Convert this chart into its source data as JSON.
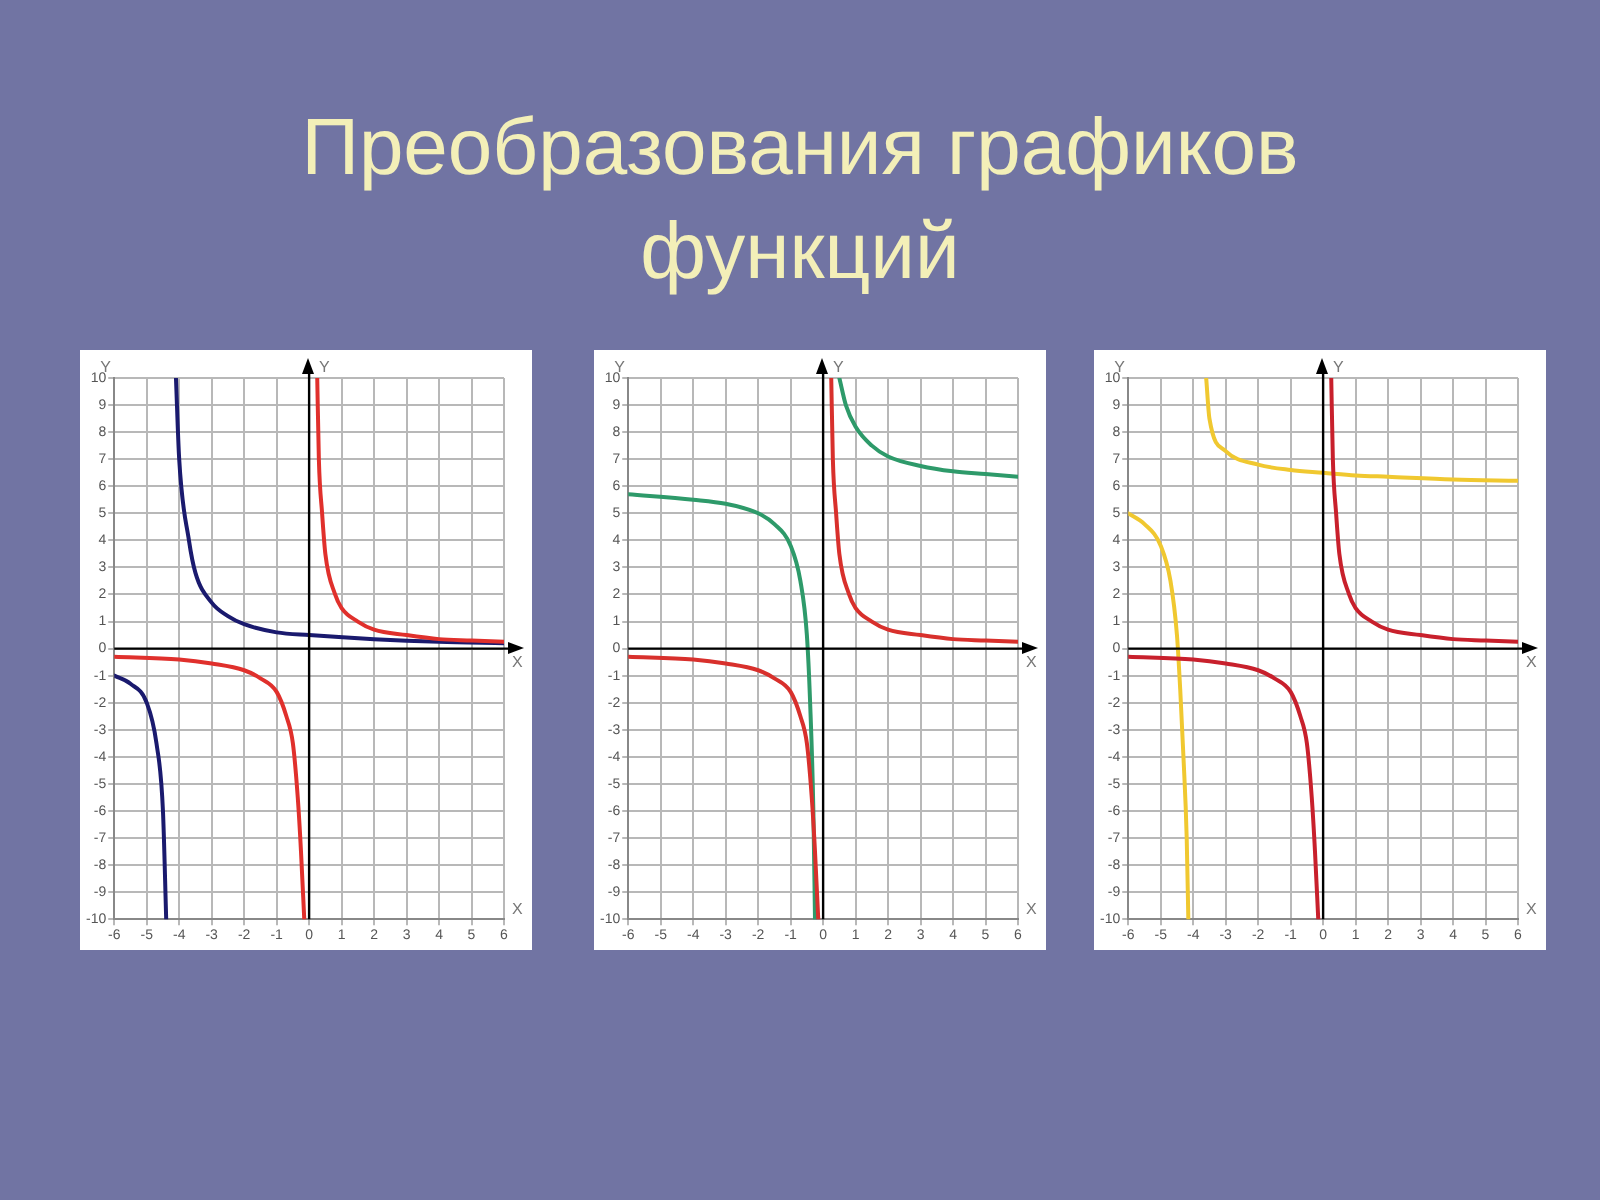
{
  "chart_data": [
    {
      "type": "line",
      "title": "Преобразования графиков функций",
      "xlabel": "X",
      "ylabel": "Y",
      "xlim": [
        -6,
        6
      ],
      "ylim": [
        -10,
        10
      ],
      "xticks": [
        -6,
        -5,
        -4,
        -3,
        -2,
        -1,
        0,
        1,
        2,
        3,
        4,
        5,
        6
      ],
      "yticks": [
        -10,
        -9,
        -8,
        -7,
        -6,
        -5,
        -4,
        -3,
        -2,
        -1,
        0,
        1,
        2,
        3,
        4,
        5,
        6,
        7,
        8,
        9,
        10
      ],
      "grid": true,
      "series": [
        {
          "color": "#e0302c",
          "x": [
            -6,
            -4,
            -3,
            -2,
            -1.5,
            -1,
            -0.7,
            -0.5,
            -0.35,
            -0.25,
            -0.15,
            0,
            0.25,
            0.3,
            0.4,
            0.5,
            0.8,
            1,
            1.5,
            2,
            3,
            4,
            5,
            6
          ],
          "values": [
            -0.3,
            -0.4,
            -0.55,
            -0.8,
            -1.1,
            -1.6,
            -2.5,
            -3.5,
            -5.5,
            -7.5,
            -10,
            null,
            10,
            7,
            5,
            3.5,
            2,
            1.5,
            1,
            0.7,
            0.5,
            0.35,
            0.3,
            0.25
          ]
        },
        {
          "color": "#1a1a6e",
          "x": [
            -6,
            -5.5,
            -5,
            -4.7,
            -4.5,
            -4.4,
            -4.2,
            -4.1,
            -4,
            -3.7,
            -3.5,
            -3,
            -2.5,
            -2,
            -1,
            0,
            2,
            4,
            6
          ],
          "values": [
            -1,
            -1.3,
            -2,
            -3.5,
            -6,
            -10,
            null,
            10,
            7,
            4,
            2.8,
            1.7,
            1.2,
            0.9,
            0.6,
            0.5,
            0.35,
            0.25,
            0.2
          ]
        }
      ]
    },
    {
      "type": "line",
      "xlabel": "X",
      "ylabel": "Y",
      "xlim": [
        -6,
        6
      ],
      "ylim": [
        -10,
        10
      ],
      "xticks": [
        -6,
        -5,
        -4,
        -3,
        -2,
        -1,
        0,
        1,
        2,
        3,
        4,
        5,
        6
      ],
      "yticks": [
        -10,
        -9,
        -8,
        -7,
        -6,
        -5,
        -4,
        -3,
        -2,
        -1,
        0,
        1,
        2,
        3,
        4,
        5,
        6,
        7,
        8,
        9,
        10
      ],
      "grid": true,
      "series": [
        {
          "color": "#d8302c",
          "x": [
            -6,
            -4,
            -3,
            -2,
            -1.5,
            -1,
            -0.7,
            -0.5,
            -0.35,
            -0.25,
            -0.15,
            0,
            0.25,
            0.3,
            0.4,
            0.5,
            0.8,
            1,
            1.5,
            2,
            3,
            4,
            5,
            6
          ],
          "values": [
            -0.3,
            -0.4,
            -0.55,
            -0.8,
            -1.1,
            -1.6,
            -2.5,
            -3.5,
            -5.5,
            -7.5,
            -10,
            null,
            10,
            7,
            5,
            3.5,
            2,
            1.5,
            1,
            0.7,
            0.5,
            0.35,
            0.3,
            0.25
          ]
        },
        {
          "color": "#2e9a6a",
          "x": [
            -6,
            -4,
            -3,
            -2,
            -1.5,
            -1,
            -0.7,
            -0.5,
            -0.4,
            -0.3,
            -0.25,
            0,
            0.5,
            0.7,
            1,
            1.5,
            2,
            3,
            4,
            5,
            6
          ],
          "values": [
            5.7,
            5.5,
            5.35,
            5,
            4.6,
            3.8,
            2.5,
            0.5,
            -2,
            -6,
            -10,
            null,
            10,
            9,
            8.2,
            7.5,
            7.1,
            6.75,
            6.55,
            6.45,
            6.35
          ]
        }
      ]
    },
    {
      "type": "line",
      "xlabel": "X",
      "ylabel": "Y",
      "xlim": [
        -6,
        6
      ],
      "ylim": [
        -10,
        10
      ],
      "xticks": [
        -6,
        -5,
        -4,
        -3,
        -2,
        -1,
        0,
        1,
        2,
        3,
        4,
        5,
        6
      ],
      "yticks": [
        -10,
        -9,
        -8,
        -7,
        -6,
        -5,
        -4,
        -3,
        -2,
        -1,
        0,
        1,
        2,
        3,
        4,
        5,
        6,
        7,
        8,
        9,
        10
      ],
      "grid": true,
      "series": [
        {
          "color": "#c8202c",
          "x": [
            -6,
            -4,
            -3,
            -2,
            -1.5,
            -1,
            -0.7,
            -0.5,
            -0.35,
            -0.25,
            -0.15,
            0,
            0.25,
            0.3,
            0.4,
            0.5,
            0.8,
            1,
            1.5,
            2,
            3,
            4,
            5,
            6
          ],
          "values": [
            -0.3,
            -0.4,
            -0.55,
            -0.8,
            -1.1,
            -1.6,
            -2.5,
            -3.5,
            -5.5,
            -7.5,
            -10,
            null,
            10,
            7,
            5,
            3.5,
            2,
            1.5,
            1,
            0.7,
            0.5,
            0.35,
            0.3,
            0.25
          ]
        },
        {
          "color": "#f0c830",
          "x": [
            -6,
            -5.5,
            -5,
            -4.7,
            -4.5,
            -4.4,
            -4.3,
            -4.2,
            -4.15,
            -4,
            -3.6,
            -3.5,
            -3,
            -2,
            -1,
            0,
            1,
            2,
            4,
            6
          ],
          "values": [
            5,
            4.6,
            3.8,
            2.5,
            0.5,
            -1.5,
            -4,
            -7,
            -10,
            null,
            10,
            8.5,
            7.3,
            6.8,
            6.6,
            6.5,
            6.4,
            6.35,
            6.25,
            6.2
          ]
        }
      ]
    }
  ]
}
